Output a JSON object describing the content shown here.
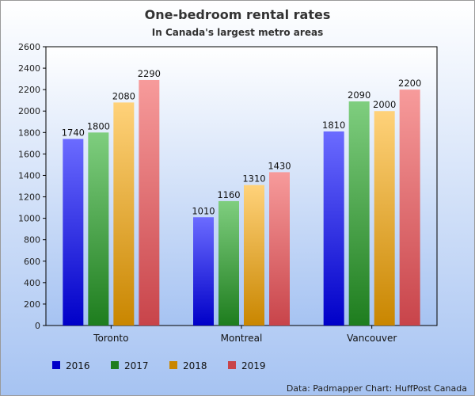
{
  "chart_data": {
    "type": "bar",
    "title": "One-bedroom rental rates",
    "subtitle": "In Canada's largest metro areas",
    "xlabel": "",
    "ylabel": "",
    "ylim": [
      0,
      2600
    ],
    "yticks": [
      "0",
      "200",
      "400",
      "600",
      "800",
      "1000",
      "1200",
      "1400",
      "1600",
      "1800",
      "2000",
      "2200",
      "2400",
      "2600"
    ],
    "categories": [
      "Toronto",
      "Montreal",
      "Vancouver"
    ],
    "series": [
      {
        "name": "2016",
        "values": [
          1740,
          1010,
          1810
        ],
        "color_top": "#6b6bff",
        "color_bottom": "#0000c8"
      },
      {
        "name": "2017",
        "values": [
          1800,
          1160,
          2090
        ],
        "color_top": "#7fce7f",
        "color_bottom": "#1e7d1e"
      },
      {
        "name": "2018",
        "values": [
          2080,
          1310,
          2000
        ],
        "color_top": "#ffd27a",
        "color_bottom": "#c98600"
      },
      {
        "name": "2019",
        "values": [
          2290,
          1430,
          2200
        ],
        "color_top": "#f79b9b",
        "color_bottom": "#c8444a"
      }
    ],
    "grid": false,
    "legend_position": "bottom-left",
    "source": "Data: Padmapper Chart: HuffPost Canada",
    "colors": {
      "background_top": "#ffffff",
      "background_bottom": "#a6c3f2",
      "plot_top": "#ffffff",
      "plot_bottom": "#a6c3f2"
    }
  }
}
